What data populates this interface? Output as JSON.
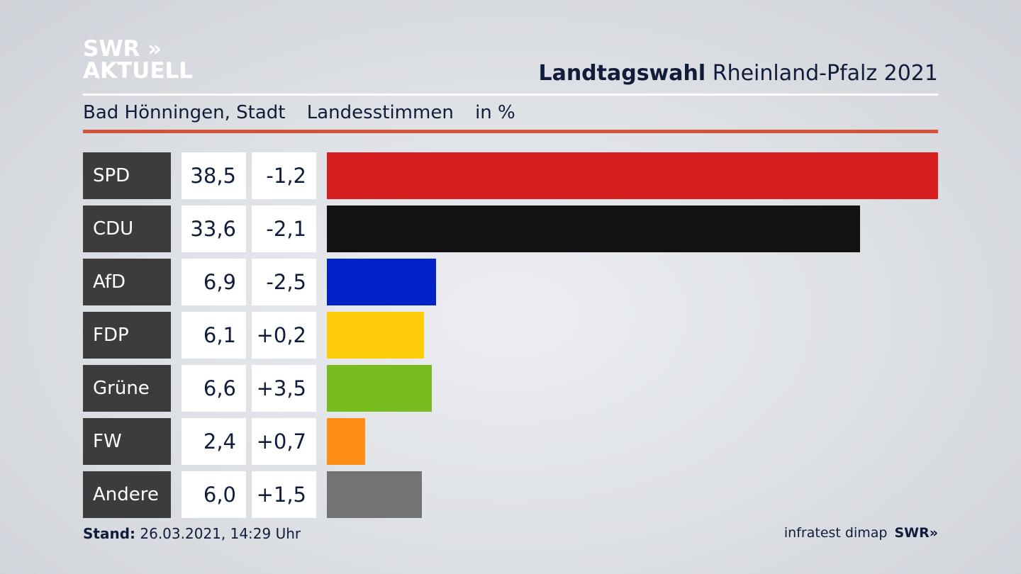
{
  "logo": {
    "line1": "SWR »",
    "line2": "AKTUELL"
  },
  "header": {
    "title_bold": "Landtagswahl",
    "title_rest": "Rheinland-Pfalz 2021"
  },
  "subtitle": {
    "place": "Bad Hönningen, Stadt",
    "type": "Landesstimmen",
    "unit": "in %"
  },
  "chart_data": {
    "type": "bar",
    "orientation": "horizontal",
    "categories": [
      "SPD",
      "CDU",
      "AfD",
      "FDP",
      "Grüne",
      "FW",
      "Andere"
    ],
    "values": [
      38.5,
      33.6,
      6.9,
      6.1,
      6.6,
      2.4,
      6.0
    ],
    "value_labels": [
      "38,5",
      "33,6",
      "6,9",
      "6,1",
      "6,6",
      "2,4",
      "6,0"
    ],
    "diff_labels": [
      "-1,2",
      "-2,1",
      "-2,5",
      "+0,2",
      "+3,5",
      "+0,7",
      "+1,5"
    ],
    "colors": [
      "#d71f20",
      "#121212",
      "#0022c8",
      "#fecd0a",
      "#77bb1f",
      "#fd8e18",
      "#737373"
    ],
    "grid": false
  },
  "footer": {
    "stand_label": "Stand:",
    "stand_value": "26.03.2021, 14:29 Uhr",
    "source": "infratest dimap",
    "brand": "SWR»"
  }
}
